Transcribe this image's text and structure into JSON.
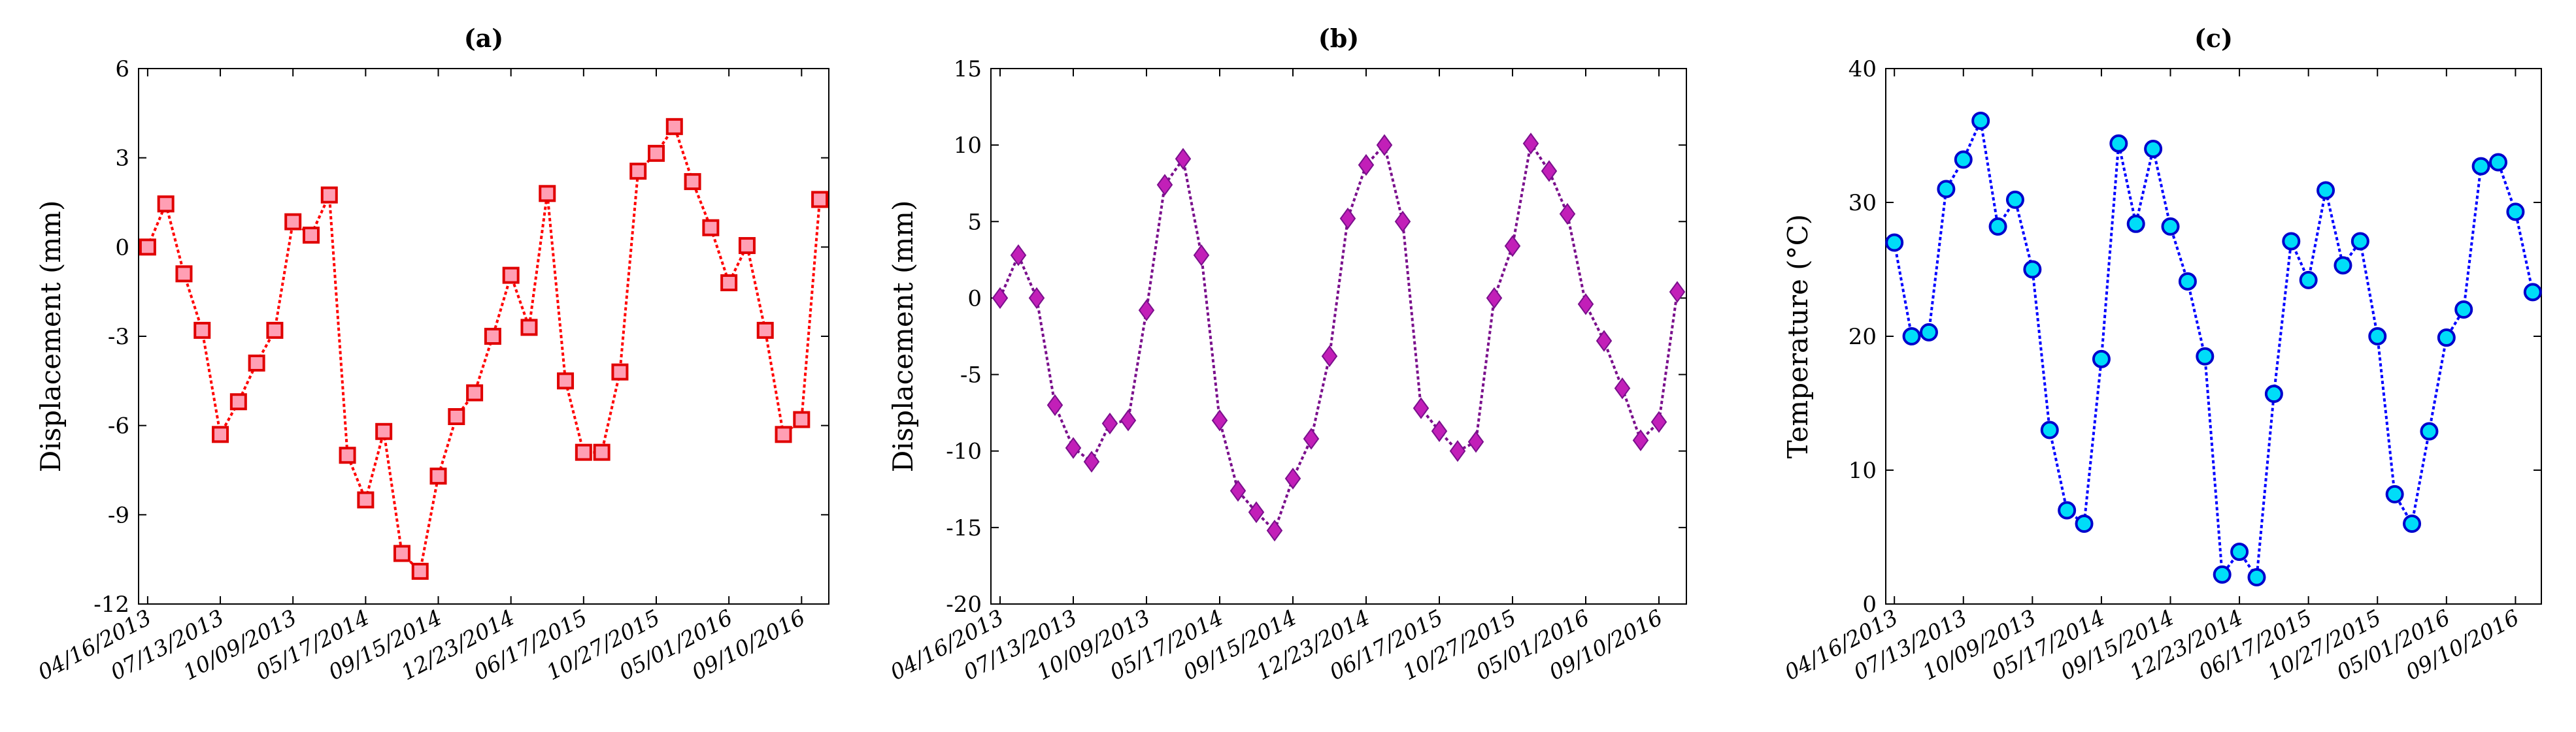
{
  "chart_data": [
    {
      "id": "a",
      "type": "line",
      "title": "(a)",
      "xlabel": "",
      "ylabel": "Displacement (mm)",
      "ylim": [
        -12,
        6
      ],
      "yticks": [
        -12,
        -9,
        -6,
        -3,
        0,
        3,
        6
      ],
      "xlim": [
        -0.5,
        37.5
      ],
      "xtick_labels": [
        "04/16/2013",
        "07/13/2013",
        "10/09/2013",
        "05/17/2014",
        "09/15/2014",
        "12/23/2014",
        "06/17/2015",
        "10/27/2015",
        "05/01/2016",
        "09/10/2016"
      ],
      "xtick_positions": [
        0,
        4,
        8,
        12,
        16,
        20,
        24,
        28,
        32,
        36
      ],
      "marker": "square",
      "line_color": "#ff0000",
      "marker_fill": "#ff9fb4",
      "marker_edge": "#e00000",
      "values": [
        0.0,
        1.45,
        -0.9,
        -2.8,
        -6.3,
        -5.2,
        -3.9,
        -2.8,
        0.85,
        0.4,
        1.75,
        -7.0,
        -8.5,
        -6.2,
        -10.3,
        -10.9,
        -7.7,
        -5.7,
        -4.9,
        -3.0,
        -0.95,
        -2.7,
        1.8,
        -4.5,
        -6.9,
        -6.9,
        -4.2,
        2.55,
        3.15,
        4.05,
        2.2,
        0.65,
        -1.2,
        0.05,
        -2.8,
        -6.3,
        -5.8,
        1.6
      ]
    },
    {
      "id": "b",
      "type": "line",
      "title": "(b)",
      "xlabel": "",
      "ylabel": "Displacement (mm)",
      "ylim": [
        -20,
        15
      ],
      "yticks": [
        -20,
        -15,
        -10,
        -5,
        0,
        5,
        10,
        15
      ],
      "xlim": [
        -0.5,
        37.5
      ],
      "xtick_labels": [
        "04/16/2013",
        "07/13/2013",
        "10/09/2013",
        "05/17/2014",
        "09/15/2014",
        "12/23/2014",
        "06/17/2015",
        "10/27/2015",
        "05/01/2016",
        "09/10/2016"
      ],
      "xtick_positions": [
        0,
        4,
        8,
        12,
        16,
        20,
        24,
        28,
        32,
        36
      ],
      "marker": "diamond",
      "line_color": "#7a0f8c",
      "marker_fill": "#c21fb8",
      "marker_edge": "#7a0f8c",
      "values": [
        0.0,
        2.8,
        0.0,
        -7.0,
        -9.8,
        -10.7,
        -8.2,
        -8.0,
        -0.8,
        7.4,
        9.1,
        2.8,
        -8.0,
        -12.6,
        -14.0,
        -15.2,
        -11.8,
        -9.2,
        -3.8,
        5.2,
        8.7,
        10.0,
        5.0,
        -7.2,
        -8.7,
        -10.0,
        -9.4,
        0.0,
        3.4,
        10.1,
        8.3,
        5.5,
        -0.4,
        -2.8,
        -5.9,
        -9.3,
        -8.1,
        0.4
      ]
    },
    {
      "id": "c",
      "type": "line",
      "title": "(c)",
      "xlabel": "",
      "ylabel": "Temperature (°C)",
      "ylim": [
        0,
        40
      ],
      "yticks": [
        0,
        10,
        20,
        30,
        40
      ],
      "xlim": [
        -0.5,
        37.5
      ],
      "xtick_labels": [
        "04/16/2013",
        "07/13/2013",
        "10/09/2013",
        "05/17/2014",
        "09/15/2014",
        "12/23/2014",
        "06/17/2015",
        "10/27/2015",
        "05/01/2016",
        "09/10/2016"
      ],
      "xtick_positions": [
        0,
        4,
        8,
        12,
        16,
        20,
        24,
        28,
        32,
        36
      ],
      "marker": "circle",
      "line_color": "#0000ff",
      "marker_fill": "#00ddf8",
      "marker_edge": "#0000cc",
      "values": [
        27.0,
        20.0,
        20.3,
        31.0,
        33.2,
        36.1,
        28.2,
        30.2,
        25.0,
        13.0,
        7.0,
        6.0,
        18.3,
        34.4,
        28.4,
        34.0,
        28.2,
        24.1,
        18.5,
        2.2,
        3.9,
        2.0,
        15.7,
        27.1,
        24.2,
        30.9,
        25.3,
        27.1,
        20.0,
        8.2,
        6.0,
        12.9,
        19.9,
        22.0,
        32.7,
        33.0,
        29.3,
        23.3
      ]
    }
  ]
}
